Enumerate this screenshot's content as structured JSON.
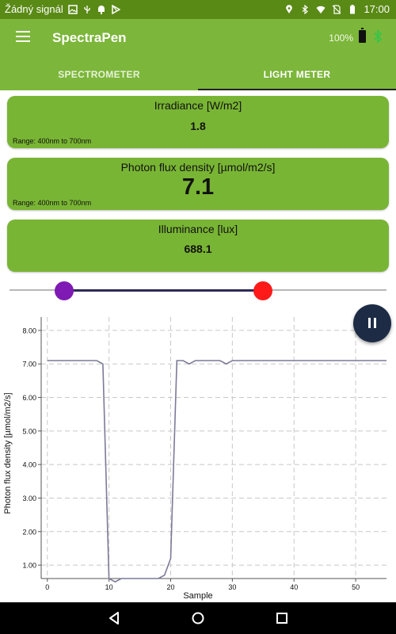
{
  "status_bar": {
    "carrier": "Žádný signál",
    "time": "17:00",
    "icons": [
      "image-icon",
      "usb-icon",
      "android-debug-icon",
      "play-store-icon",
      "location-icon",
      "bluetooth-icon",
      "wifi-icon",
      "no-sim-icon",
      "battery-icon"
    ]
  },
  "app_bar": {
    "title": "SpectraPen",
    "battery": "100%",
    "icons": [
      "menu-icon",
      "battery-icon",
      "bluetooth-icon"
    ]
  },
  "tabs": [
    {
      "label": "SPECTROMETER",
      "active": false
    },
    {
      "label": "LIGHT METER",
      "active": true
    }
  ],
  "cards": {
    "irradiance": {
      "title": "Irradiance [W/m2]",
      "value": "1.8",
      "range": "Range: 400nm to 700nm"
    },
    "pfd": {
      "title": "Photon flux density [µmol/m2/s]",
      "value": "7.1",
      "range": "Range: 400nm to 700nm"
    },
    "illuminance": {
      "title": "Illuminance [lux]",
      "value": "688.1"
    }
  },
  "slider": {
    "low_color": "#7f1ab4",
    "high_color": "#ff1a1a",
    "range_color": "#2d2b57"
  },
  "pause_button": {
    "icon": "pause-icon"
  },
  "colors": {
    "status": "#5a8a16",
    "accent": "#7cb63a",
    "card": "#79b534",
    "fab": "#1d2b45",
    "line": "#7c7a98"
  },
  "chart_data": {
    "type": "line",
    "xlabel": "Sample",
    "ylabel": "Photon flux density [µmol/m2/s]",
    "xlim": [
      -1,
      55
    ],
    "ylim": [
      0.6,
      8.4
    ],
    "x_ticks": [
      0,
      10,
      20,
      30,
      40,
      50
    ],
    "y_ticks": [
      "1.00",
      "2.00",
      "3.00",
      "4.00",
      "5.00",
      "6.00",
      "7.00",
      "8.00"
    ],
    "grid": true,
    "series": [
      {
        "x": [
          0,
          8,
          9,
          10,
          11,
          12,
          13,
          14,
          15,
          16,
          17,
          18,
          19,
          20,
          21,
          22,
          23,
          24,
          25,
          26,
          27,
          28,
          29,
          30,
          35,
          40,
          45,
          50,
          55
        ],
        "y": [
          7.1,
          7.1,
          7.0,
          0.6,
          0.5,
          0.6,
          0.6,
          0.6,
          0.6,
          0.6,
          0.6,
          0.6,
          0.7,
          1.2,
          7.1,
          7.1,
          7.0,
          7.1,
          7.1,
          7.1,
          7.1,
          7.1,
          7.0,
          7.1,
          7.1,
          7.1,
          7.1,
          7.1,
          7.1
        ]
      }
    ]
  },
  "nav_bar": {
    "icons": [
      "back-icon",
      "home-icon",
      "recents-icon"
    ]
  }
}
